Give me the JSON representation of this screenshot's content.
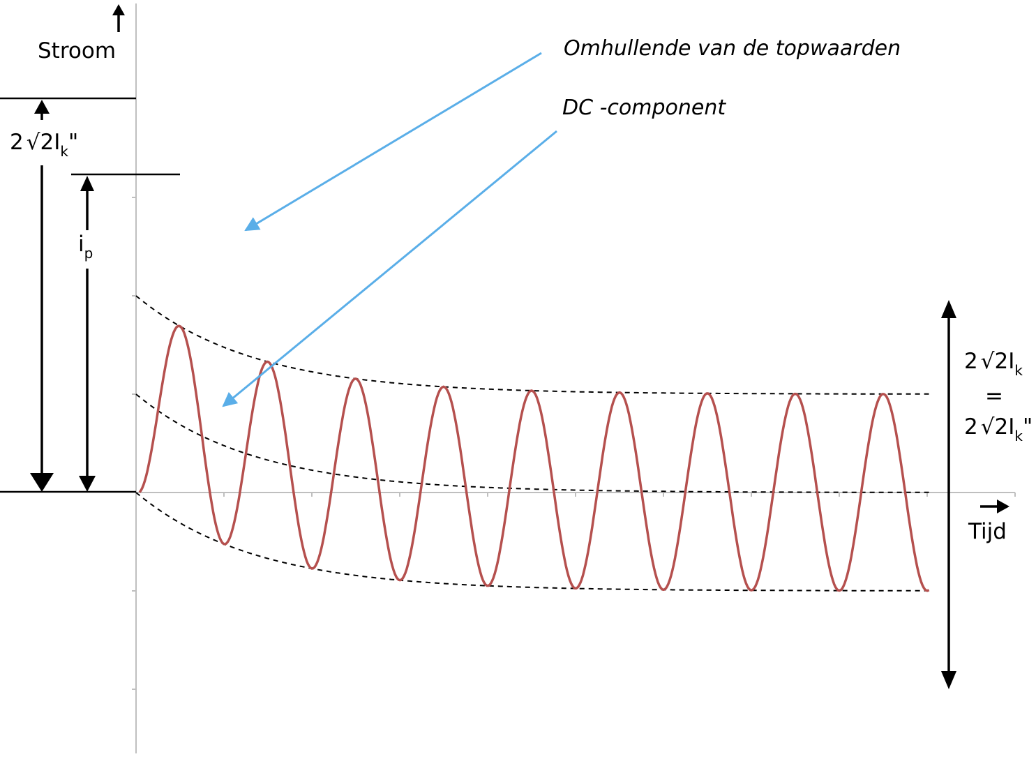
{
  "labels": {
    "y_axis": "Stroom",
    "x_axis": "Tijd",
    "initial_peak_prefix": "2",
    "sqrt_symbol": "√",
    "initial_peak_body": "2I",
    "initial_peak_sub": "k",
    "initial_peak_suffix": "\"",
    "ip_main": "i",
    "ip_sub": "p",
    "steady_prefix": "2",
    "steady_body": "2I",
    "steady_sub": "k",
    "equals": "=",
    "steady_suffix": "\""
  },
  "annotations": {
    "envelope": "Omhullende van de topwaarden",
    "dc_component": "DC -component"
  },
  "colors": {
    "waveform": "#b5504e",
    "arrow_annotation": "#5aaee8",
    "axis": "#bfbfbf",
    "lines": "#000000"
  },
  "chart_data": {
    "type": "line",
    "description_free": true,
    "cycles": 9,
    "ac_amplitude": 1.0,
    "dc_initial": 1.0,
    "dc_decay_time_constant_cycles": 1.35,
    "series": [
      {
        "values_rule": "dc(t) + cos(2πt)"
      },
      {
        "values_rule": "dc(t) + 1"
      },
      {
        "values_rule": "dc(t)"
      },
      {
        "values_rule": "dc(t) - 1"
      }
    ]
  }
}
